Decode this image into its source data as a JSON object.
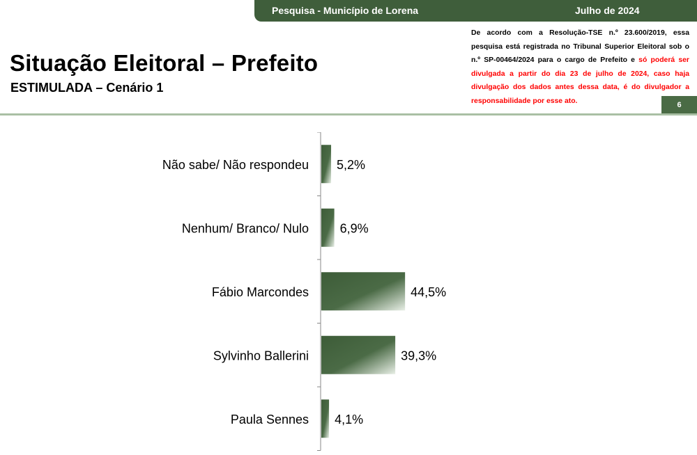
{
  "header": {
    "survey": "Pesquisa - Município de Lorena",
    "date": "Julho de 2024",
    "title": "Situação Eleitoral – Prefeito",
    "subtitle": "ESTIMULADA – Cenário 1",
    "page_number": "6"
  },
  "legal": {
    "text": "De acordo com a Resolução-TSE n.º 23.600/2019, essa pesquisa está registrada no Tribunal Superior Eleitoral sob o n.º SP-00464/2024 para o cargo de Prefeito e ",
    "warning": "só poderá ser divulgada a partir do dia 23 de julho de 2024, caso haja divulgação dos dados antes dessa data, é do divulgador a responsabilidade por esse ato."
  },
  "colors": {
    "band": "#3f5e3b",
    "bar_dark": "#3d5c38",
    "bar_light": "#e8efe6",
    "badge": "#4a6b45",
    "rule": "#a9bfa4",
    "warning": "#ff0000"
  },
  "chart_data": {
    "type": "bar",
    "orientation": "horizontal",
    "categories": [
      "Não sabe/ Não respondeu",
      "Nenhum/ Branco/ Nulo",
      "Fábio Marcondes",
      "Sylvinho Ballerini",
      "Paula Sennes"
    ],
    "values": [
      5.2,
      6.9,
      44.5,
      39.3,
      4.1
    ],
    "value_labels": [
      "5,2%",
      "6,9%",
      "44,5%",
      "39,3%",
      "4,1%"
    ],
    "unit": "%",
    "xlim": [
      0,
      100
    ],
    "grid": false,
    "legend": "none"
  }
}
